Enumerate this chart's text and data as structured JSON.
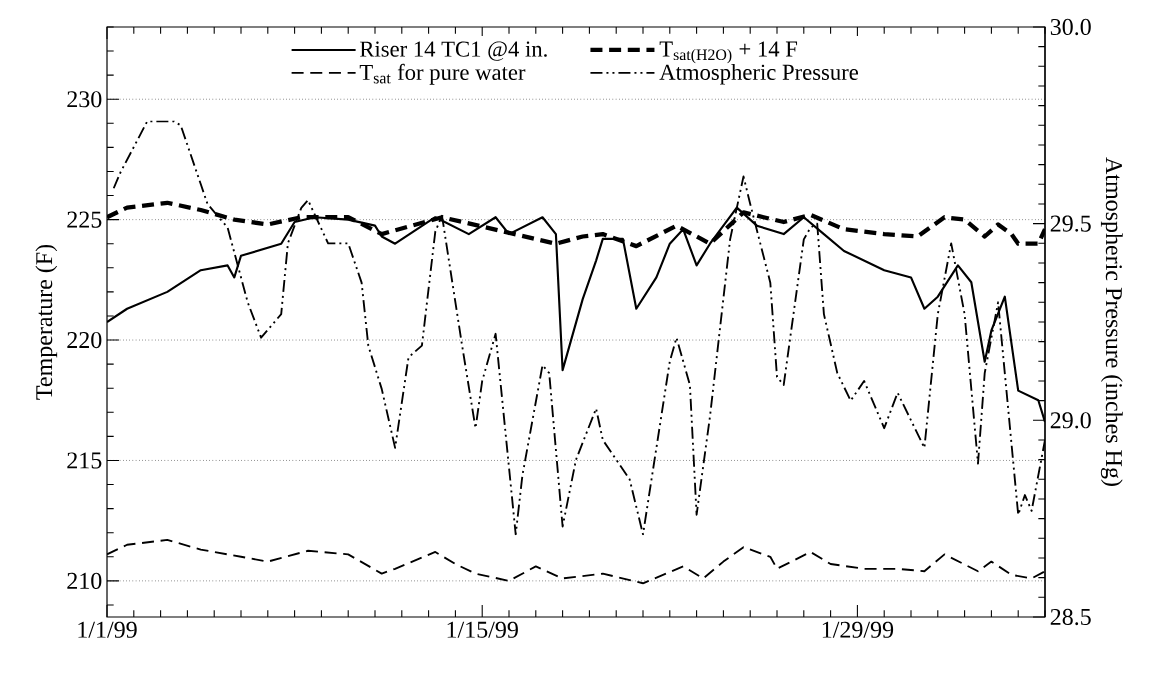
{
  "chart_data": {
    "type": "line",
    "ylabel": "Temperature (F)",
    "y2label": "Atmospheric Pressure (inches Hg)",
    "xlim": [
      "1999-01-01",
      "1999-02-05"
    ],
    "xticks": [
      {
        "value": "1999-01-01",
        "label": "1/1/99"
      },
      {
        "value": "1999-01-02",
        "label": null
      },
      {
        "value": "1999-01-03",
        "label": null
      },
      {
        "value": "1999-01-04",
        "label": null
      },
      {
        "value": "1999-01-05",
        "label": null
      },
      {
        "value": "1999-01-06",
        "label": null
      },
      {
        "value": "1999-01-07",
        "label": null
      },
      {
        "value": "1999-01-08",
        "label": null
      },
      {
        "value": "1999-01-09",
        "label": null
      },
      {
        "value": "1999-01-10",
        "label": null
      },
      {
        "value": "1999-01-11",
        "label": null
      },
      {
        "value": "1999-01-12",
        "label": null
      },
      {
        "value": "1999-01-13",
        "label": null
      },
      {
        "value": "1999-01-14",
        "label": null
      },
      {
        "value": "1999-01-15",
        "label": "1/15/99"
      },
      {
        "value": "1999-01-16",
        "label": null
      },
      {
        "value": "1999-01-17",
        "label": null
      },
      {
        "value": "1999-01-18",
        "label": null
      },
      {
        "value": "1999-01-19",
        "label": null
      },
      {
        "value": "1999-01-20",
        "label": null
      },
      {
        "value": "1999-01-21",
        "label": null
      },
      {
        "value": "1999-01-22",
        "label": null
      },
      {
        "value": "1999-01-23",
        "label": null
      },
      {
        "value": "1999-01-24",
        "label": null
      },
      {
        "value": "1999-01-25",
        "label": null
      },
      {
        "value": "1999-01-26",
        "label": null
      },
      {
        "value": "1999-01-27",
        "label": null
      },
      {
        "value": "1999-01-28",
        "label": null
      },
      {
        "value": "1999-01-29",
        "label": "1/29/99"
      },
      {
        "value": "1999-01-30",
        "label": null
      },
      {
        "value": "1999-01-31",
        "label": null
      },
      {
        "value": "1999-02-01",
        "label": null
      },
      {
        "value": "1999-02-02",
        "label": null
      },
      {
        "value": "1999-02-03",
        "label": null
      },
      {
        "value": "1999-02-04",
        "label": null
      },
      {
        "value": "1999-02-05",
        "label": null
      }
    ],
    "ylim": [
      208.5,
      233
    ],
    "yticks": [
      {
        "value": 209,
        "label": null
      },
      210,
      {
        "value": 211,
        "label": null
      },
      {
        "value": 212,
        "label": null
      },
      {
        "value": 213,
        "label": null
      },
      {
        "value": 214,
        "label": null
      },
      215,
      {
        "value": 216,
        "label": null
      },
      {
        "value": 217,
        "label": null
      },
      {
        "value": 218,
        "label": null
      },
      {
        "value": 219,
        "label": null
      },
      220,
      {
        "value": 221,
        "label": null
      },
      {
        "value": 222,
        "label": null
      },
      {
        "value": 223,
        "label": null
      },
      {
        "value": 224,
        "label": null
      },
      225,
      {
        "value": 226,
        "label": null
      },
      {
        "value": 227,
        "label": null
      },
      {
        "value": 228,
        "label": null
      },
      {
        "value": 229,
        "label": null
      },
      230,
      {
        "value": 231,
        "label": null
      },
      {
        "value": 232,
        "label": null
      },
      {
        "value": 233,
        "label": null
      }
    ],
    "y2lim": [
      28.5,
      30.0
    ],
    "y2ticks": [
      28.5,
      {
        "value": 28.55,
        "label": null
      },
      {
        "value": 28.6,
        "label": null
      },
      {
        "value": 28.65,
        "label": null
      },
      {
        "value": 28.7,
        "label": null
      },
      {
        "value": 28.75,
        "label": null
      },
      {
        "value": 28.8,
        "label": null
      },
      {
        "value": 28.85,
        "label": null
      },
      {
        "value": 28.9,
        "label": null
      },
      {
        "value": 28.95,
        "label": null
      },
      {
        "value": 29.0,
        "label": "29.0"
      },
      {
        "value": 29.05,
        "label": null
      },
      {
        "value": 29.1,
        "label": null
      },
      {
        "value": 29.15,
        "label": null
      },
      {
        "value": 29.2,
        "label": null
      },
      {
        "value": 29.25,
        "label": null
      },
      {
        "value": 29.3,
        "label": null
      },
      {
        "value": 29.35,
        "label": null
      },
      {
        "value": 29.4,
        "label": null
      },
      {
        "value": 29.45,
        "label": null
      },
      29.5,
      {
        "value": 29.55,
        "label": null
      },
      {
        "value": 29.6,
        "label": null
      },
      {
        "value": 29.65,
        "label": null
      },
      {
        "value": 29.7,
        "label": null
      },
      {
        "value": 29.75,
        "label": null
      },
      {
        "value": 29.8,
        "label": null
      },
      {
        "value": 29.85,
        "label": null
      },
      {
        "value": 29.9,
        "label": null
      },
      {
        "value": 29.95,
        "label": null
      },
      {
        "value": 30.0,
        "label": "30.0"
      }
    ],
    "grid": "y",
    "legend": "top",
    "series": [
      {
        "name": "Riser 14 TC1 @4 in.",
        "color": "#000000",
        "line_style": "solid",
        "x": [
          "1999-01-01T00:00",
          "1999-01-01T18:00",
          "1999-01-03T06:00",
          "1999-01-04T12:00",
          "1999-01-05T12:00",
          "1999-01-05T18:00",
          "1999-01-06T00:00",
          "1999-01-07T12:00",
          "1999-01-08T00:00",
          "1999-01-08T18:00",
          "1999-01-10T00:00",
          "1999-01-11T00:00",
          "1999-01-11T06:00",
          "1999-01-11T18:00",
          "1999-01-13T06:00",
          "1999-01-14T12:00",
          "1999-01-15T12:00",
          "1999-01-16T00:00",
          "1999-01-17T06:00",
          "1999-01-17T18:00",
          "1999-01-18T00:00",
          "1999-01-18T18:00",
          "1999-01-19T06:00",
          "1999-01-19T12:00",
          "1999-01-20T06:00",
          "1999-01-20T18:00",
          "1999-01-21T12:00",
          "1999-01-22T00:00",
          "1999-01-22T12:00",
          "1999-01-23T00:00",
          "1999-01-23T12:00",
          "1999-01-24T12:00",
          "1999-01-25T06:00",
          "1999-01-26T06:00",
          "1999-01-27T00:00",
          "1999-01-27T18:00",
          "1999-01-28T12:00",
          "1999-01-30T00:00",
          "1999-01-31T00:00",
          "1999-01-31T12:00",
          "1999-02-01T00:00",
          "1999-02-01T18:00",
          "1999-02-02T06:00",
          "1999-02-02T18:00",
          "1999-02-03T00:00",
          "1999-02-03T12:00",
          "1999-02-04T00:00",
          "1999-02-04T18:00",
          "1999-02-05T00:00"
        ],
        "values": [
          220.75,
          221.3,
          222.0,
          222.9,
          223.1,
          222.6,
          223.5,
          224.0,
          224.9,
          225.1,
          225.0,
          224.75,
          224.3,
          224.0,
          225.1,
          224.4,
          225.1,
          224.4,
          225.1,
          224.4,
          218.75,
          221.7,
          223.3,
          224.2,
          224.2,
          221.3,
          222.6,
          224.0,
          224.6,
          223.1,
          224.0,
          225.5,
          224.75,
          224.4,
          225.1,
          224.4,
          223.7,
          222.9,
          222.6,
          221.3,
          221.8,
          223.1,
          222.4,
          219.1,
          220.4,
          221.8,
          217.9,
          217.5,
          216.6
        ]
      },
      {
        "name": "T$_{sat(H2O)}$ + 14 F",
        "color": "#000000",
        "line_style": "dashed",
        "x": [
          "1999-01-01T00:00",
          "1999-01-01T18:00",
          "1999-01-03T06:00",
          "1999-01-04T12:00",
          "1999-01-05T18:00",
          "1999-01-07T00:00",
          "1999-01-08T06:00",
          "1999-01-10T00:00",
          "1999-01-11T06:00",
          "1999-01-13T12:00",
          "1999-01-17T18:00",
          "1999-01-18T18:00",
          "1999-01-19T12:00",
          "1999-01-20T18:00",
          "1999-01-22T06:00",
          "1999-01-23T12:00",
          "1999-01-24T18:00",
          "1999-01-26T06:00",
          "1999-01-27T06:00",
          "1999-01-28T12:00",
          "1999-01-30T00:00",
          "1999-01-31T06:00",
          "1999-02-01T06:00",
          "1999-02-02T00:00",
          "1999-02-02T18:00",
          "1999-02-03T06:00",
          "1999-02-03T18:00",
          "1999-02-04T00:00",
          "1999-02-04T18:00",
          "1999-02-05T00:00"
        ],
        "values": [
          225.1,
          225.5,
          225.7,
          225.4,
          225.0,
          224.8,
          225.1,
          225.1,
          224.4,
          225.1,
          224.0,
          224.3,
          224.4,
          223.9,
          224.75,
          224.0,
          225.3,
          224.9,
          225.2,
          224.6,
          224.4,
          224.3,
          225.1,
          225.0,
          224.3,
          224.8,
          224.4,
          224.0,
          224.0,
          224.6
        ]
      },
      {
        "name": "T$_{sat}$ for pure water",
        "color": "#000000",
        "line_style": "dashed",
        "x": [
          "1999-01-01T00:00",
          "1999-01-01T18:00",
          "1999-01-03T06:00",
          "1999-01-04T12:00",
          "1999-01-06T00:00",
          "1999-01-07T00:00",
          "1999-01-08T12:00",
          "1999-01-10T00:00",
          "1999-01-11T06:00",
          "1999-01-11T18:00",
          "1999-01-13T06:00",
          "1999-01-14T00:00",
          "1999-01-14T18:00",
          "1999-01-16T00:00",
          "1999-01-17T00:00",
          "1999-01-18T00:00",
          "1999-01-19T12:00",
          "1999-01-21T00:00",
          "1999-01-22T12:00",
          "1999-01-23T06:00",
          "1999-01-24T00:00",
          "1999-01-24T18:00",
          "1999-01-25T18:00",
          "1999-01-26T00:00",
          "1999-01-27T06:00",
          "1999-01-28T00:00",
          "1999-01-29T06:00",
          "1999-01-30T12:00",
          "1999-01-31T12:00",
          "1999-02-01T06:00",
          "1999-02-02T12:00",
          "1999-02-03T00:00",
          "1999-02-03T18:00",
          "1999-02-04T12:00",
          "1999-02-05T00:00"
        ],
        "values": [
          211.1,
          211.5,
          211.7,
          211.3,
          211.0,
          210.8,
          211.25,
          211.1,
          210.3,
          210.5,
          211.2,
          210.7,
          210.3,
          210.0,
          210.6,
          210.1,
          210.3,
          209.9,
          210.6,
          210.1,
          210.8,
          211.4,
          211.0,
          210.5,
          211.2,
          210.7,
          210.5,
          210.5,
          210.4,
          211.1,
          210.4,
          210.8,
          210.25,
          210.1,
          210.4
        ]
      },
      {
        "name": "Atmospheric Pressure",
        "color": "#000000",
        "line_style": "dotted",
        "axis": "y2",
        "x": [
          "1999-01-01T06:00",
          "1999-01-01T12:00",
          "1999-01-02T12:00",
          "1999-01-03T12:00",
          "1999-01-03T18:00",
          "1999-01-04T12:00",
          "1999-01-04T18:00",
          "1999-01-05T12:00",
          "1999-01-06T06:00",
          "1999-01-06T18:00",
          "1999-01-07T12:00",
          "1999-01-07T18:00",
          "1999-01-08T06:00",
          "1999-01-08T12:00",
          "1999-01-09T06:00",
          "1999-01-10T00:00",
          "1999-01-10T12:00",
          "1999-01-10T18:00",
          "1999-01-11T06:00",
          "1999-01-11T18:00",
          "1999-01-12T06:00",
          "1999-01-12T18:00",
          "1999-01-13T06:00",
          "1999-01-13T12:00",
          "1999-01-14T06:00",
          "1999-01-14T18:00",
          "1999-01-15T00:00",
          "1999-01-15T12:00",
          "1999-01-16T06:00",
          "1999-01-16T12:00",
          "1999-01-17T06:00",
          "1999-01-17T12:00",
          "1999-01-18T00:00",
          "1999-01-18T12:00",
          "1999-01-19T06:00",
          "1999-01-19T12:00",
          "1999-01-20T12:00",
          "1999-01-21T00:00",
          "1999-01-22T00:00",
          "1999-01-22T06:00",
          "1999-01-22T18:00",
          "1999-01-23T00:00",
          "1999-01-23T12:00",
          "1999-01-24T06:00",
          "1999-01-24T18:00",
          "1999-01-25T00:00",
          "1999-01-25T18:00",
          "1999-01-26T00:00",
          "1999-01-26T06:00",
          "1999-01-27T00:00",
          "1999-01-27T06:00",
          "1999-01-27T12:00",
          "1999-01-27T18:00",
          "1999-01-28T06:00",
          "1999-01-28T18:00",
          "1999-01-29T06:00",
          "1999-01-30T00:00",
          "1999-01-30T12:00",
          "1999-01-31T12:00",
          "1999-02-01T00:00",
          "1999-02-01T12:00",
          "1999-02-02T00:00",
          "1999-02-02T12:00",
          "1999-02-02T18:00",
          "1999-02-03T06:00",
          "1999-02-04T00:00",
          "1999-02-04T06:00",
          "1999-02-04T12:00",
          "1999-02-05T00:00"
        ],
        "values": [
          29.59,
          29.63,
          29.76,
          29.76,
          29.75,
          29.6,
          29.55,
          29.49,
          29.3,
          29.21,
          29.27,
          29.45,
          29.54,
          29.56,
          29.45,
          29.45,
          29.35,
          29.19,
          29.08,
          28.93,
          29.16,
          29.19,
          29.48,
          29.52,
          29.19,
          28.98,
          29.1,
          29.22,
          28.71,
          28.86,
          29.14,
          29.12,
          28.73,
          28.9,
          29.03,
          28.95,
          28.85,
          28.71,
          29.15,
          29.21,
          29.09,
          28.76,
          29.01,
          29.46,
          29.62,
          29.55,
          29.35,
          29.11,
          29.09,
          29.46,
          29.49,
          29.5,
          29.27,
          29.12,
          29.05,
          29.1,
          28.98,
          29.07,
          28.93,
          29.27,
          29.45,
          29.27,
          28.89,
          29.12,
          29.3,
          28.76,
          28.81,
          28.77,
          28.95
        ]
      }
    ]
  }
}
